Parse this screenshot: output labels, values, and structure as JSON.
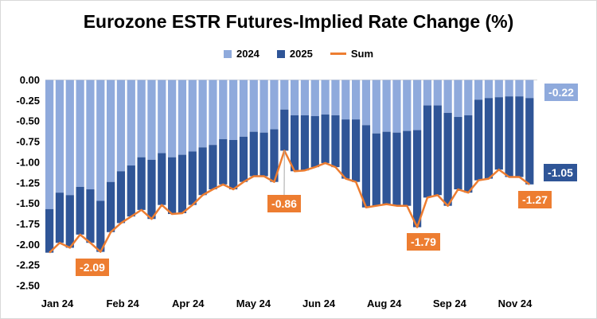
{
  "colors": {
    "s2024": "#8faadc",
    "s2025": "#2f5597",
    "sum": "#ed7d31"
  },
  "chart_data": {
    "type": "bar",
    "stacked": true,
    "title": "Eurozone ESTR Futures-Implied Rate Change (%)",
    "xlabel": "",
    "ylabel": "",
    "ylim": [
      -2.5,
      0
    ],
    "yticks": [
      "0.00",
      "-0.25",
      "-0.50",
      "-0.75",
      "-1.00",
      "-1.25",
      "-1.50",
      "-1.75",
      "-2.00",
      "-2.25",
      "-2.50"
    ],
    "xticks": [
      "Jan 24",
      "Feb 24",
      "Apr 24",
      "May 24",
      "Jun 24",
      "Aug 24",
      "Sep 24",
      "Nov 24"
    ],
    "legend_position": "top",
    "grid": false,
    "series": [
      {
        "name": "2024",
        "type": "bar",
        "values": [
          -1.57,
          -1.37,
          -1.4,
          -1.3,
          -1.33,
          -1.47,
          -1.24,
          -1.11,
          -1.04,
          -0.94,
          -0.97,
          -0.89,
          -0.94,
          -0.91,
          -0.87,
          -0.82,
          -0.79,
          -0.72,
          -0.73,
          -0.69,
          -0.63,
          -0.64,
          -0.6,
          -0.36,
          -0.43,
          -0.43,
          -0.44,
          -0.42,
          -0.43,
          -0.48,
          -0.48,
          -0.55,
          -0.65,
          -0.63,
          -0.64,
          -0.62,
          -0.61,
          -0.31,
          -0.31,
          -0.4,
          -0.45,
          -0.43,
          -0.24,
          -0.22,
          -0.21,
          -0.2,
          -0.2,
          -0.22
        ]
      },
      {
        "name": "2025",
        "type": "bar",
        "values": [
          -0.53,
          -0.61,
          -0.64,
          -0.58,
          -0.65,
          -0.62,
          -0.61,
          -0.63,
          -0.62,
          -0.64,
          -0.72,
          -0.63,
          -0.69,
          -0.71,
          -0.65,
          -0.58,
          -0.54,
          -0.55,
          -0.6,
          -0.55,
          -0.54,
          -0.53,
          -0.64,
          -0.5,
          -0.68,
          -0.67,
          -0.62,
          -0.59,
          -0.63,
          -0.72,
          -0.76,
          -1.0,
          -0.88,
          -0.88,
          -0.89,
          -0.91,
          -1.18,
          -1.12,
          -1.09,
          -1.13,
          -0.88,
          -0.94,
          -0.98,
          -0.98,
          -0.88,
          -0.98,
          -0.98,
          -1.05
        ]
      },
      {
        "name": "Sum",
        "type": "line",
        "values": [
          -2.1,
          -1.98,
          -2.04,
          -1.88,
          -1.98,
          -2.09,
          -1.85,
          -1.74,
          -1.66,
          -1.58,
          -1.69,
          -1.52,
          -1.63,
          -1.62,
          -1.52,
          -1.4,
          -1.33,
          -1.27,
          -1.33,
          -1.24,
          -1.17,
          -1.17,
          -1.24,
          -0.86,
          -1.11,
          -1.1,
          -1.06,
          -1.01,
          -1.06,
          -1.2,
          -1.24,
          -1.55,
          -1.53,
          -1.51,
          -1.53,
          -1.53,
          -1.79,
          -1.43,
          -1.4,
          -1.53,
          -1.33,
          -1.37,
          -1.22,
          -1.2,
          -1.09,
          -1.18,
          -1.18,
          -1.27
        ]
      }
    ],
    "annotations": [
      {
        "text": "-2.09",
        "series": "Sum",
        "index": 5
      },
      {
        "text": "-0.86",
        "series": "Sum",
        "index": 23
      },
      {
        "text": "-1.79",
        "series": "Sum",
        "index": 36
      },
      {
        "text": "-1.27",
        "series": "Sum",
        "index": 47
      },
      {
        "text": "-1.05",
        "series": "2025",
        "index": 47
      },
      {
        "text": "-0.22",
        "series": "2024",
        "index": 47
      }
    ]
  }
}
